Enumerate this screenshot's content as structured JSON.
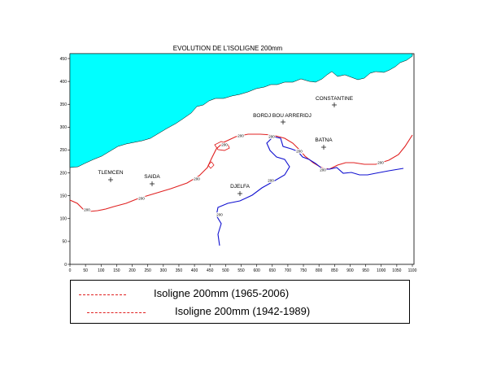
{
  "map": {
    "title": "EVOLUTION DE L'ISOLIGNE 200mm",
    "x_ticks": [
      "0",
      "50",
      "100",
      "150",
      "200",
      "250",
      "300",
      "350",
      "400",
      "450",
      "500",
      "550",
      "600",
      "650",
      "700",
      "750",
      "800",
      "850",
      "900",
      "950",
      "1000",
      "1050",
      "1100"
    ],
    "y_ticks": [
      "0",
      "50",
      "100",
      "150",
      "200",
      "250",
      "300",
      "350",
      "400",
      "450"
    ],
    "cities": [
      {
        "name": "CONSTANTINE"
      },
      {
        "name": "BORDJ BOU ARRERIDJ"
      },
      {
        "name": "BATNA"
      },
      {
        "name": "TLEMCEN"
      },
      {
        "name": "SAIDA"
      },
      {
        "name": "DJELFA"
      }
    ],
    "contour_label": "200",
    "colors": {
      "sea": "#00ffff",
      "isoline_recent": "#e02020",
      "isoline_old": "#1010d0"
    }
  },
  "legend": {
    "entries": [
      {
        "label": "Isoligne 200mm (1965-2006)"
      },
      {
        "label": "Isoligne 200mm  (1942-1989)"
      }
    ]
  }
}
